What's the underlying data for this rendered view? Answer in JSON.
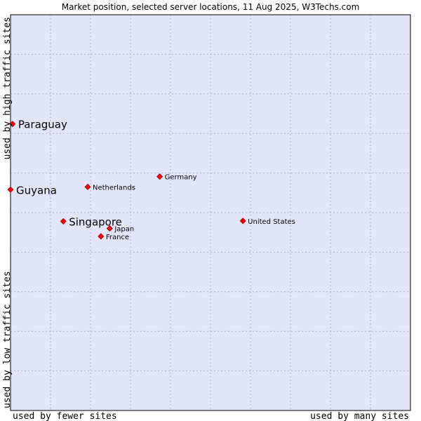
{
  "chart_data": {
    "type": "scatter",
    "title": "Market position, selected server locations, 11 Aug 2025, W3Techs.com",
    "xlabel_left": "used by fewer sites",
    "xlabel_right": "used by many sites",
    "ylabel_top": "used by high traffic sites",
    "ylabel_bottom": "used by low traffic sites",
    "xlim": [
      0,
      100
    ],
    "ylim": [
      0,
      100
    ],
    "grid": true,
    "colors": {
      "plot_bg": "#e3e5fb",
      "grid": "#b4b4d2",
      "marker": "#ee0000",
      "marker_edge": "#aa0000"
    },
    "points": [
      {
        "name": "Paraguay",
        "x": 0.5,
        "y": 72.4,
        "emphasis": true
      },
      {
        "name": "Guyana",
        "x": 0.0,
        "y": 55.8,
        "emphasis": true
      },
      {
        "name": "Singapore",
        "x": 13.2,
        "y": 47.8,
        "emphasis": true
      },
      {
        "name": "Netherlands",
        "x": 19.3,
        "y": 56.5,
        "emphasis": false
      },
      {
        "name": "Germany",
        "x": 37.3,
        "y": 59.1,
        "emphasis": false
      },
      {
        "name": "United States",
        "x": 58.1,
        "y": 47.9,
        "emphasis": false
      },
      {
        "name": "Japan",
        "x": 24.8,
        "y": 46.0,
        "emphasis": false
      },
      {
        "name": "France",
        "x": 22.6,
        "y": 44.0,
        "emphasis": false
      }
    ]
  }
}
